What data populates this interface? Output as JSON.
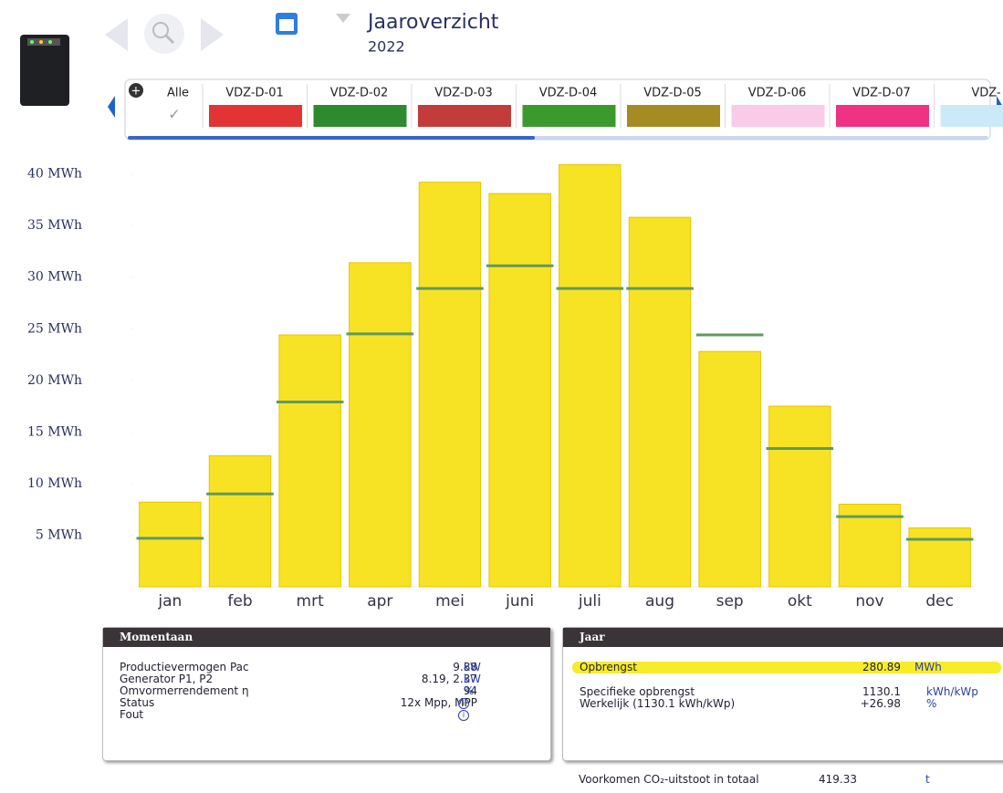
{
  "header": {
    "title": "Jaaroverzicht",
    "year": "2022"
  },
  "tabs": [
    {
      "label": "Alle"
    },
    {
      "label": "VDZ-D-01",
      "color": "#e23434"
    },
    {
      "label": "VDZ-D-02",
      "color": "#2f8a2f"
    },
    {
      "label": "VDZ-D-03",
      "color": "#c23c3c"
    },
    {
      "label": "VDZ-D-04",
      "color": "#3c9a2c"
    },
    {
      "label": "VDZ-D-05",
      "color": "#a48c22"
    },
    {
      "label": "VDZ-D-06",
      "color": "#f9cbe8"
    },
    {
      "label": "VDZ-D-07",
      "color": "#f03282"
    },
    {
      "label": "VDZ-",
      "color": "#cbe9f8"
    }
  ],
  "chart_data": {
    "type": "bar",
    "categories": [
      "jan",
      "feb",
      "mrt",
      "apr",
      "mei",
      "juni",
      "juli",
      "aug",
      "sep",
      "okt",
      "nov",
      "dec"
    ],
    "series": [
      {
        "type": "bar",
        "color": "#f7e324",
        "values": [
          8.2,
          12.7,
          24.4,
          31.4,
          39.2,
          38.1,
          40.9,
          35.8,
          22.8,
          17.5,
          8.0,
          5.7
        ]
      },
      {
        "type": "marker",
        "color": "#5f9a5f",
        "values": [
          4.7,
          9.0,
          17.9,
          24.5,
          28.9,
          31.1,
          28.9,
          28.9,
          24.4,
          13.4,
          6.8,
          4.6
        ]
      }
    ],
    "ylim": [
      0,
      42
    ],
    "yticks": [
      {
        "value": 5,
        "label": "5 MWh"
      },
      {
        "value": 10,
        "label": "10 MWh"
      },
      {
        "value": 15,
        "label": "15 MWh"
      },
      {
        "value": 20,
        "label": "20 MWh"
      },
      {
        "value": 25,
        "label": "25 MWh"
      },
      {
        "value": 30,
        "label": "30 MWh"
      },
      {
        "value": 35,
        "label": "35 MWh"
      },
      {
        "value": 40,
        "label": "40 MWh"
      }
    ]
  },
  "panels": {
    "momentaan": {
      "title": "Momentaan",
      "rows": [
        {
          "label": "Productievermogen Pac",
          "value": "9.88",
          "unit": "kW"
        },
        {
          "label": "Generator P1, P2",
          "value": "8.19, 2.37",
          "unit": "kW"
        },
        {
          "label": "Omvormerrendement η",
          "value": "94",
          "unit": "%"
        },
        {
          "label": "Status",
          "value": "12x Mpp, MPP"
        },
        {
          "label": "Fout"
        }
      ]
    },
    "jaar": {
      "title": "Jaar",
      "rows": [
        {
          "label": "Opbrengst",
          "value": "280.89",
          "unit": "MWh"
        },
        {
          "label": "Specifieke opbrengst",
          "value": "1130.1",
          "unit": "kWh/kWp"
        },
        {
          "label": "Werkelijk (1130.1 kWh/kWp)",
          "value": "+26.98",
          "unit": "%"
        }
      ],
      "footer": {
        "label": "Voorkomen CO₂-uitstoot in totaal",
        "value": "419.33",
        "unit": "t"
      }
    }
  }
}
